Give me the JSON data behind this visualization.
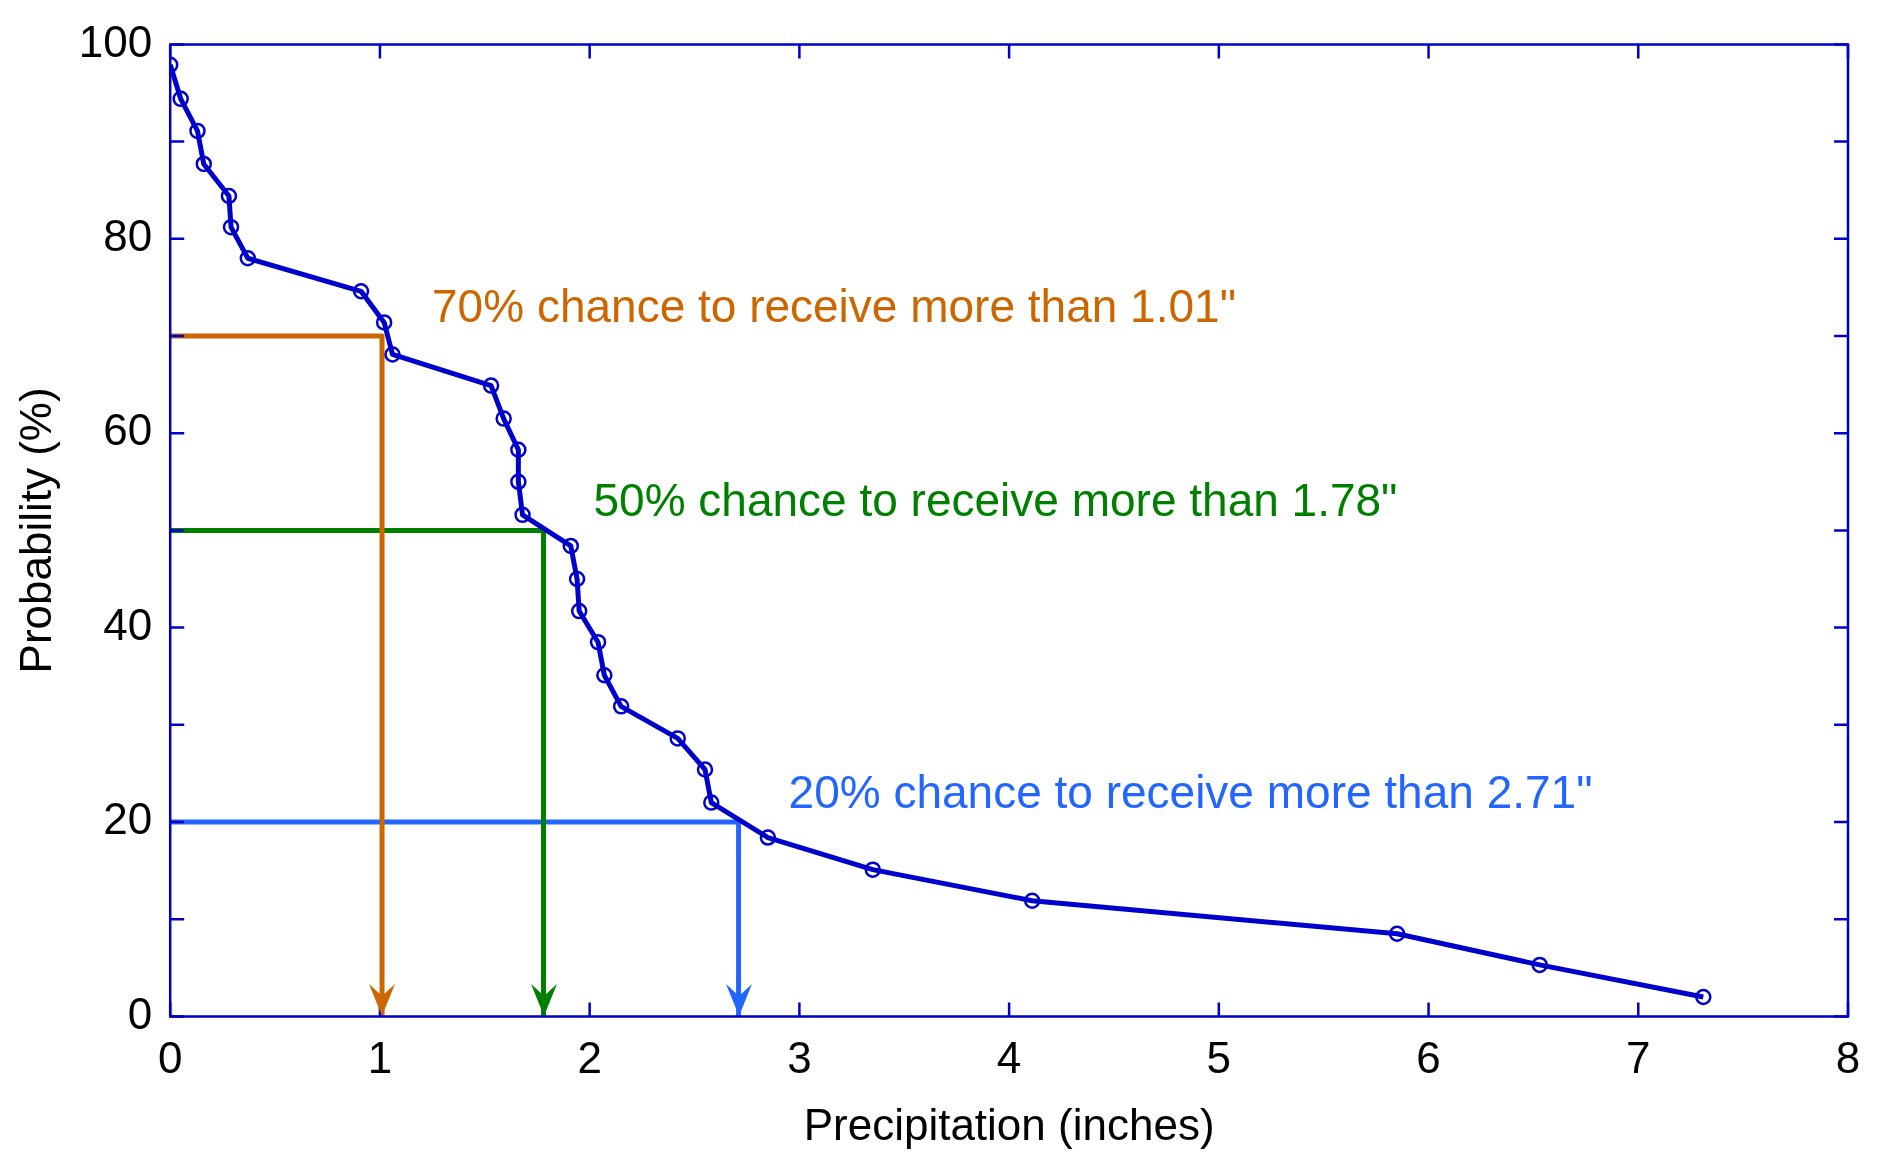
{
  "chart_data": {
    "type": "line",
    "xlabel": "Precipitation (inches)",
    "ylabel": "Probability (%)",
    "xlim": [
      0,
      8
    ],
    "xticks": [
      0,
      1,
      2,
      3,
      4,
      5,
      6,
      7,
      8
    ],
    "ylim": [
      0,
      100
    ],
    "yticks": [
      0,
      {
        "value": 10,
        "label": null
      },
      20,
      {
        "value": 30,
        "label": null
      },
      40,
      {
        "value": 50,
        "label": null
      },
      60,
      {
        "value": 70,
        "label": null
      },
      80,
      {
        "value": 90,
        "label": null
      },
      100
    ],
    "grid": false,
    "legend": false,
    "marker": "circle",
    "line_style": "solid",
    "series": [
      {
        "color": "#0000cc",
        "x": [
          0.0,
          0.05,
          0.13,
          0.16,
          0.28,
          0.29,
          0.37,
          0.91,
          1.02,
          1.06,
          1.53,
          1.59,
          1.66,
          1.66,
          1.68,
          1.91,
          1.94,
          1.95,
          2.04,
          2.07,
          2.15,
          2.42,
          2.55,
          2.58,
          2.85,
          3.35,
          4.11,
          5.85,
          6.53,
          7.31
        ],
        "values": [
          97.9,
          94.4,
          91.1,
          87.7,
          84.4,
          81.2,
          78.0,
          74.6,
          71.4,
          68.1,
          64.9,
          61.5,
          58.3,
          55.0,
          51.6,
          48.4,
          45.0,
          41.7,
          38.5,
          35.1,
          31.9,
          28.6,
          25.4,
          22.0,
          18.4,
          15.1,
          11.9,
          8.5,
          5.3,
          2.0
        ]
      },
      {
        "color": "#cc6600",
        "marker": "none",
        "x": [
          0,
          1.01,
          1.01
        ],
        "values": [
          70,
          70,
          0
        ]
      },
      {
        "color": "#008000",
        "marker": "none",
        "x": [
          0,
          1.78,
          1.78
        ],
        "values": [
          50,
          50,
          0
        ]
      },
      {
        "color": "#2266ff",
        "marker": "none",
        "x": [
          0,
          2.71,
          2.71
        ],
        "values": [
          20,
          20,
          0
        ]
      }
    ],
    "annotations": [
      {
        "text": "70% chance to receive more than 1.01\"",
        "x": 1.01,
        "y": 70
      },
      {
        "text": "50% chance to receive more than 1.78\"",
        "x": 1.78,
        "y": 50
      },
      {
        "text": "20% chance to receive more than 2.71\"",
        "x": 2.71,
        "y": 20
      }
    ]
  }
}
